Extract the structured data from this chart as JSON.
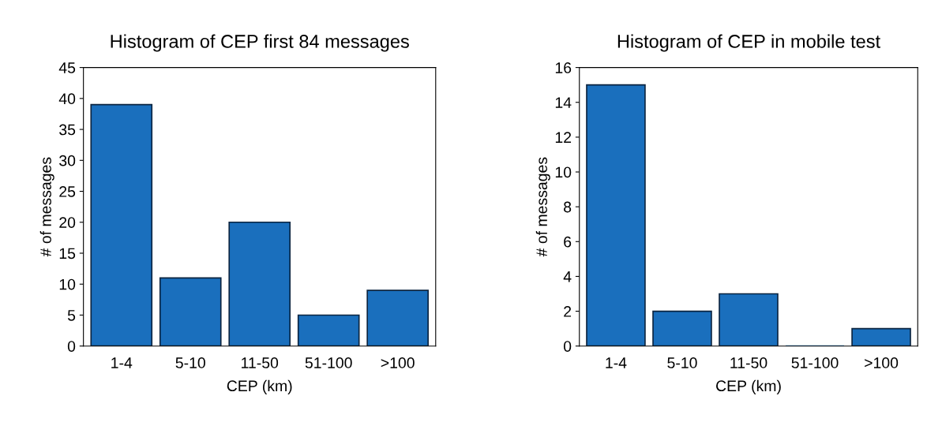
{
  "chart_data": [
    {
      "type": "bar",
      "title": "Histogram of CEP first 84 messages",
      "xlabel": "CEP (km)",
      "ylabel": "# of messages",
      "categories": [
        "1-4",
        "5-10",
        "11-50",
        "51-100",
        ">100"
      ],
      "values": [
        39,
        11,
        20,
        5,
        9
      ],
      "color": "#1a6fbd",
      "ylim": [
        0,
        45
      ],
      "yticks": [
        0,
        5,
        10,
        15,
        20,
        25,
        30,
        35,
        40,
        45
      ],
      "grid": false,
      "legend": false
    },
    {
      "type": "bar",
      "title": "Histogram of CEP in mobile test",
      "xlabel": "CEP (km)",
      "ylabel": "# of messages",
      "categories": [
        "1-4",
        "5-10",
        "11-50",
        "51-100",
        ">100"
      ],
      "values": [
        15,
        2,
        3,
        0,
        1
      ],
      "color": "#1a6fbd",
      "ylim": [
        0,
        16
      ],
      "yticks": [
        0,
        2,
        4,
        6,
        8,
        10,
        12,
        14,
        16
      ],
      "grid": false,
      "legend": false
    }
  ]
}
